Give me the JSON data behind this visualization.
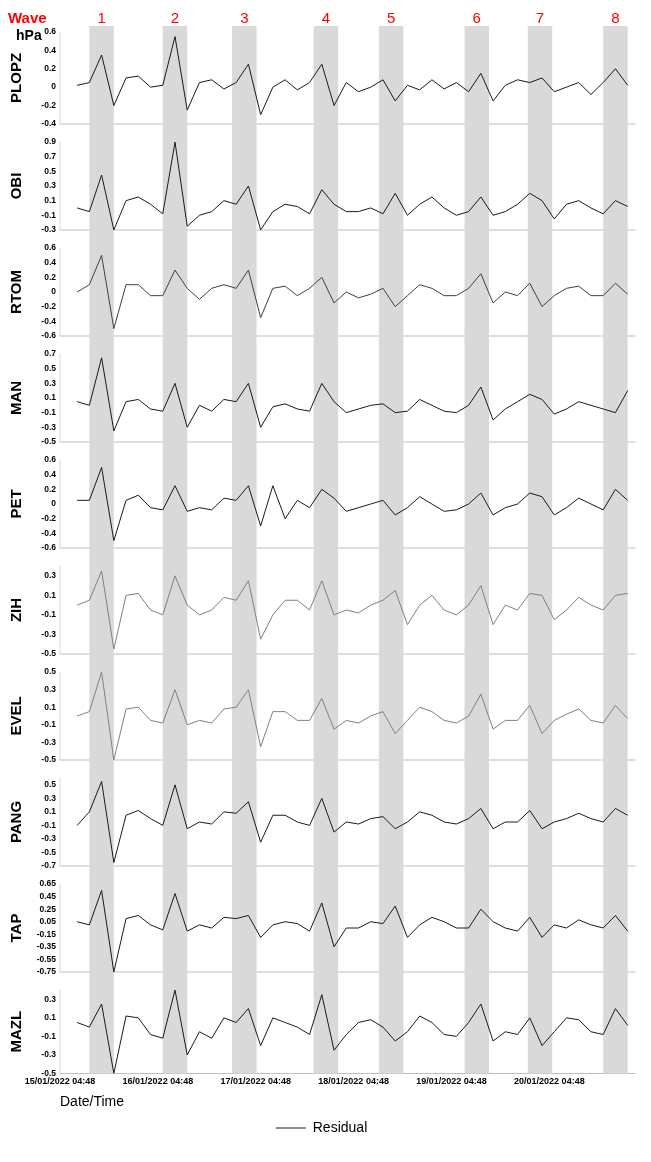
{
  "chart_data": [
    {
      "type": "line",
      "title": "Wave",
      "annotations": [
        "hPa"
      ],
      "ylabel": "PLOPZ",
      "marker": "none",
      "tick_labels": "y",
      "x": [
        "2022-01-15T09:00",
        "2022-01-15T12:00",
        "2022-01-15T15:00",
        "2022-01-15T18:00",
        "2022-01-15T21:00",
        "2022-01-16T00:00",
        "2022-01-16T03:00",
        "2022-01-16T06:00",
        "2022-01-16T09:00",
        "2022-01-16T12:00",
        "2022-01-16T15:00",
        "2022-01-16T18:00",
        "2022-01-16T21:00",
        "2022-01-17T00:00",
        "2022-01-17T03:00",
        "2022-01-17T06:00",
        "2022-01-17T09:00",
        "2022-01-17T12:00",
        "2022-01-17T15:00",
        "2022-01-17T18:00",
        "2022-01-17T21:00",
        "2022-01-18T00:00",
        "2022-01-18T03:00",
        "2022-01-18T06:00",
        "2022-01-18T09:00",
        "2022-01-18T12:00",
        "2022-01-18T15:00",
        "2022-01-18T18:00",
        "2022-01-18T21:00",
        "2022-01-19T00:00",
        "2022-01-19T03:00",
        "2022-01-19T06:00",
        "2022-01-19T09:00",
        "2022-01-19T12:00",
        "2022-01-19T15:00",
        "2022-01-19T18:00",
        "2022-01-19T21:00",
        "2022-01-20T00:00",
        "2022-01-20T03:00",
        "2022-01-20T06:00",
        "2022-01-20T09:00",
        "2022-01-20T12:00",
        "2022-01-20T15:00",
        "2022-01-20T18:00",
        "2022-01-20T21:00",
        "2022-01-21T00:00"
      ],
      "series": [
        {
          "color": "#1a1a1a",
          "values": [
            0.02,
            0.05,
            0.35,
            -0.2,
            0.1,
            0.12,
            0.0,
            0.02,
            0.55,
            -0.25,
            0.05,
            0.08,
            -0.02,
            0.05,
            0.25,
            -0.3,
            0.0,
            0.08,
            -0.03,
            0.05,
            0.25,
            -0.2,
            0.05,
            -0.05,
            0.0,
            0.08,
            -0.15,
            0.02,
            -0.03,
            0.08,
            -0.02,
            0.05,
            -0.05,
            0.15,
            -0.15,
            0.02,
            0.08,
            0.05,
            0.1,
            -0.05,
            0.0,
            0.05,
            -0.08,
            0.05,
            0.2,
            0.02
          ]
        }
      ],
      "xlim": [
        "2022-01-15T04:48",
        "2022-01-21T01:48"
      ],
      "ylim": [
        -0.4,
        0.6
      ],
      "yticks": [
        -0.4,
        -0.2,
        0,
        0.2,
        0.4,
        0.6
      ],
      "bands": [
        {
          "axis": "x",
          "from": "2022-01-15T12:00",
          "to": "2022-01-15T18:00",
          "label": "1",
          "color": "#d9d9d9"
        },
        {
          "axis": "x",
          "from": "2022-01-16T06:00",
          "to": "2022-01-16T12:00",
          "label": "2",
          "color": "#d9d9d9"
        },
        {
          "axis": "x",
          "from": "2022-01-16T23:00",
          "to": "2022-01-17T05:00",
          "label": "3",
          "color": "#d9d9d9"
        },
        {
          "axis": "x",
          "from": "2022-01-17T19:00",
          "to": "2022-01-18T01:00",
          "label": "4",
          "color": "#d9d9d9"
        },
        {
          "axis": "x",
          "from": "2022-01-18T11:00",
          "to": "2022-01-18T17:00",
          "label": "5",
          "color": "#d9d9d9"
        },
        {
          "axis": "x",
          "from": "2022-01-19T08:00",
          "to": "2022-01-19T14:00",
          "label": "6",
          "color": "#d9d9d9"
        },
        {
          "axis": "x",
          "from": "2022-01-19T23:30",
          "to": "2022-01-20T05:30",
          "label": "7",
          "color": "#d9d9d9"
        },
        {
          "axis": "x",
          "from": "2022-01-20T18:00",
          "to": "2022-01-21T00:00",
          "label": "8",
          "color": "#d9d9d9"
        }
      ]
    },
    {
      "type": "line",
      "ylabel": "OBI",
      "marker": "none",
      "tick_labels": "y",
      "x": [
        "2022-01-15T09:00",
        "2022-01-15T12:00",
        "2022-01-15T15:00",
        "2022-01-15T18:00",
        "2022-01-15T21:00",
        "2022-01-16T00:00",
        "2022-01-16T03:00",
        "2022-01-16T06:00",
        "2022-01-16T09:00",
        "2022-01-16T12:00",
        "2022-01-16T15:00",
        "2022-01-16T18:00",
        "2022-01-16T21:00",
        "2022-01-17T00:00",
        "2022-01-17T03:00",
        "2022-01-17T06:00",
        "2022-01-17T09:00",
        "2022-01-17T12:00",
        "2022-01-17T15:00",
        "2022-01-17T18:00",
        "2022-01-17T21:00",
        "2022-01-18T00:00",
        "2022-01-18T03:00",
        "2022-01-18T06:00",
        "2022-01-18T09:00",
        "2022-01-18T12:00",
        "2022-01-18T15:00",
        "2022-01-18T18:00",
        "2022-01-18T21:00",
        "2022-01-19T00:00",
        "2022-01-19T03:00",
        "2022-01-19T06:00",
        "2022-01-19T09:00",
        "2022-01-19T12:00",
        "2022-01-19T15:00",
        "2022-01-19T18:00",
        "2022-01-19T21:00",
        "2022-01-20T00:00",
        "2022-01-20T03:00",
        "2022-01-20T06:00",
        "2022-01-20T09:00",
        "2022-01-20T12:00",
        "2022-01-20T15:00",
        "2022-01-20T18:00",
        "2022-01-20T21:00",
        "2022-01-21T00:00"
      ],
      "series": [
        {
          "color": "#1a1a1a",
          "values": [
            0.0,
            -0.05,
            0.45,
            -0.3,
            0.1,
            0.15,
            0.05,
            -0.08,
            0.9,
            -0.25,
            -0.1,
            -0.05,
            0.1,
            0.05,
            0.3,
            -0.3,
            -0.05,
            0.05,
            0.02,
            -0.08,
            0.25,
            0.05,
            -0.05,
            -0.05,
            0.0,
            -0.08,
            0.2,
            -0.1,
            0.05,
            0.15,
            0.0,
            -0.1,
            -0.05,
            0.15,
            -0.1,
            -0.05,
            0.05,
            0.2,
            0.1,
            -0.15,
            0.05,
            0.1,
            0.0,
            -0.08,
            0.1,
            0.02
          ]
        }
      ],
      "xlim": [
        "2022-01-15T04:48",
        "2022-01-21T01:48"
      ],
      "ylim": [
        -0.3,
        0.9
      ],
      "yticks": [
        -0.3,
        -0.1,
        0.1,
        0.3,
        0.5,
        0.7,
        0.9
      ],
      "bands": [
        {
          "axis": "x",
          "from": "2022-01-15T12:00",
          "to": "2022-01-15T18:00",
          "color": "#d9d9d9"
        },
        {
          "axis": "x",
          "from": "2022-01-16T06:00",
          "to": "2022-01-16T12:00",
          "color": "#d9d9d9"
        },
        {
          "axis": "x",
          "from": "2022-01-16T23:00",
          "to": "2022-01-17T05:00",
          "color": "#d9d9d9"
        },
        {
          "axis": "x",
          "from": "2022-01-17T19:00",
          "to": "2022-01-18T01:00",
          "color": "#d9d9d9"
        },
        {
          "axis": "x",
          "from": "2022-01-18T11:00",
          "to": "2022-01-18T17:00",
          "color": "#d9d9d9"
        },
        {
          "axis": "x",
          "from": "2022-01-19T08:00",
          "to": "2022-01-19T14:00",
          "color": "#d9d9d9"
        },
        {
          "axis": "x",
          "from": "2022-01-19T23:30",
          "to": "2022-01-20T05:30",
          "color": "#d9d9d9"
        },
        {
          "axis": "x",
          "from": "2022-01-20T18:00",
          "to": "2022-01-21T00:00",
          "color": "#d9d9d9"
        }
      ]
    },
    {
      "type": "line",
      "ylabel": "RTOM",
      "marker": "none",
      "tick_labels": "y",
      "x": [
        "2022-01-15T09:00",
        "2022-01-15T12:00",
        "2022-01-15T15:00",
        "2022-01-15T18:00",
        "2022-01-15T21:00",
        "2022-01-16T00:00",
        "2022-01-16T03:00",
        "2022-01-16T06:00",
        "2022-01-16T09:00",
        "2022-01-16T12:00",
        "2022-01-16T15:00",
        "2022-01-16T18:00",
        "2022-01-16T21:00",
        "2022-01-17T00:00",
        "2022-01-17T03:00",
        "2022-01-17T06:00",
        "2022-01-17T09:00",
        "2022-01-17T12:00",
        "2022-01-17T15:00",
        "2022-01-17T18:00",
        "2022-01-17T21:00",
        "2022-01-18T00:00",
        "2022-01-18T03:00",
        "2022-01-18T06:00",
        "2022-01-18T09:00",
        "2022-01-18T12:00",
        "2022-01-18T15:00",
        "2022-01-18T18:00",
        "2022-01-18T21:00",
        "2022-01-19T00:00",
        "2022-01-19T03:00",
        "2022-01-19T06:00",
        "2022-01-19T09:00",
        "2022-01-19T12:00",
        "2022-01-19T15:00",
        "2022-01-19T18:00",
        "2022-01-19T21:00",
        "2022-01-20T00:00",
        "2022-01-20T03:00",
        "2022-01-20T06:00",
        "2022-01-20T09:00",
        "2022-01-20T12:00",
        "2022-01-20T15:00",
        "2022-01-20T18:00",
        "2022-01-20T21:00",
        "2022-01-21T00:00"
      ],
      "series": [
        {
          "color": "#404040",
          "values": [
            0.0,
            0.1,
            0.5,
            -0.5,
            0.1,
            0.1,
            -0.05,
            -0.05,
            0.3,
            0.05,
            -0.1,
            0.05,
            0.1,
            0.05,
            0.3,
            -0.35,
            0.05,
            0.08,
            -0.05,
            0.05,
            0.2,
            -0.15,
            0.0,
            -0.08,
            -0.03,
            0.05,
            -0.2,
            -0.05,
            0.1,
            0.05,
            -0.05,
            -0.05,
            0.05,
            0.25,
            -0.15,
            0.0,
            -0.05,
            0.12,
            -0.2,
            -0.05,
            0.05,
            0.08,
            -0.05,
            -0.05,
            0.12,
            -0.03
          ]
        }
      ],
      "xlim": [
        "2022-01-15T04:48",
        "2022-01-21T01:48"
      ],
      "ylim": [
        -0.6,
        0.6
      ],
      "yticks": [
        -0.6,
        -0.4,
        -0.2,
        0,
        0.2,
        0.4,
        0.6
      ],
      "bands": [
        {
          "axis": "x",
          "from": "2022-01-15T12:00",
          "to": "2022-01-15T18:00",
          "color": "#d9d9d9"
        },
        {
          "axis": "x",
          "from": "2022-01-16T06:00",
          "to": "2022-01-16T12:00",
          "color": "#d9d9d9"
        },
        {
          "axis": "x",
          "from": "2022-01-16T23:00",
          "to": "2022-01-17T05:00",
          "color": "#d9d9d9"
        },
        {
          "axis": "x",
          "from": "2022-01-17T19:00",
          "to": "2022-01-18T01:00",
          "color": "#d9d9d9"
        },
        {
          "axis": "x",
          "from": "2022-01-18T11:00",
          "to": "2022-01-18T17:00",
          "color": "#d9d9d9"
        },
        {
          "axis": "x",
          "from": "2022-01-19T08:00",
          "to": "2022-01-19T14:00",
          "color": "#d9d9d9"
        },
        {
          "axis": "x",
          "from": "2022-01-19T23:30",
          "to": "2022-01-20T05:30",
          "color": "#d9d9d9"
        },
        {
          "axis": "x",
          "from": "2022-01-20T18:00",
          "to": "2022-01-21T00:00",
          "color": "#d9d9d9"
        }
      ]
    },
    {
      "type": "line",
      "ylabel": "MAN",
      "marker": "none",
      "tick_labels": "y",
      "x": [
        "2022-01-15T09:00",
        "2022-01-15T12:00",
        "2022-01-15T15:00",
        "2022-01-15T18:00",
        "2022-01-15T21:00",
        "2022-01-16T00:00",
        "2022-01-16T03:00",
        "2022-01-16T06:00",
        "2022-01-16T09:00",
        "2022-01-16T12:00",
        "2022-01-16T15:00",
        "2022-01-16T18:00",
        "2022-01-16T21:00",
        "2022-01-17T00:00",
        "2022-01-17T03:00",
        "2022-01-17T06:00",
        "2022-01-17T09:00",
        "2022-01-17T12:00",
        "2022-01-17T15:00",
        "2022-01-17T18:00",
        "2022-01-17T21:00",
        "2022-01-18T00:00",
        "2022-01-18T03:00",
        "2022-01-18T06:00",
        "2022-01-18T09:00",
        "2022-01-18T12:00",
        "2022-01-18T15:00",
        "2022-01-18T18:00",
        "2022-01-18T21:00",
        "2022-01-19T00:00",
        "2022-01-19T03:00",
        "2022-01-19T06:00",
        "2022-01-19T09:00",
        "2022-01-19T12:00",
        "2022-01-19T15:00",
        "2022-01-19T18:00",
        "2022-01-19T21:00",
        "2022-01-20T00:00",
        "2022-01-20T03:00",
        "2022-01-20T06:00",
        "2022-01-20T09:00",
        "2022-01-20T12:00",
        "2022-01-20T15:00",
        "2022-01-20T18:00",
        "2022-01-20T21:00",
        "2022-01-21T00:00"
      ],
      "series": [
        {
          "color": "#1a1a1a",
          "values": [
            0.05,
            0.0,
            0.65,
            -0.35,
            0.05,
            0.08,
            -0.05,
            -0.08,
            0.3,
            -0.3,
            0.0,
            -0.08,
            0.08,
            0.05,
            0.3,
            -0.3,
            -0.02,
            0.02,
            -0.05,
            -0.08,
            0.3,
            0.05,
            -0.1,
            -0.05,
            0.0,
            0.02,
            -0.1,
            -0.08,
            0.08,
            0.0,
            -0.08,
            -0.1,
            0.0,
            0.25,
            -0.2,
            -0.05,
            0.05,
            0.15,
            0.08,
            -0.12,
            -0.05,
            0.05,
            0.0,
            -0.05,
            -0.1,
            0.2
          ]
        }
      ],
      "xlim": [
        "2022-01-15T04:48",
        "2022-01-21T01:48"
      ],
      "ylim": [
        -0.5,
        0.7
      ],
      "yticks": [
        -0.5,
        -0.3,
        -0.1,
        0.1,
        0.3,
        0.5,
        0.7
      ],
      "bands": [
        {
          "axis": "x",
          "from": "2022-01-15T12:00",
          "to": "2022-01-15T18:00",
          "color": "#d9d9d9"
        },
        {
          "axis": "x",
          "from": "2022-01-16T06:00",
          "to": "2022-01-16T12:00",
          "color": "#d9d9d9"
        },
        {
          "axis": "x",
          "from": "2022-01-16T23:00",
          "to": "2022-01-17T05:00",
          "color": "#d9d9d9"
        },
        {
          "axis": "x",
          "from": "2022-01-17T19:00",
          "to": "2022-01-18T01:00",
          "color": "#d9d9d9"
        },
        {
          "axis": "x",
          "from": "2022-01-18T11:00",
          "to": "2022-01-18T17:00",
          "color": "#d9d9d9"
        },
        {
          "axis": "x",
          "from": "2022-01-19T08:00",
          "to": "2022-01-19T14:00",
          "color": "#d9d9d9"
        },
        {
          "axis": "x",
          "from": "2022-01-19T23:30",
          "to": "2022-01-20T05:30",
          "color": "#d9d9d9"
        },
        {
          "axis": "x",
          "from": "2022-01-20T18:00",
          "to": "2022-01-21T00:00",
          "color": "#d9d9d9"
        }
      ]
    },
    {
      "type": "line",
      "ylabel": "PET",
      "marker": "none",
      "tick_labels": "y",
      "x": [
        "2022-01-15T09:00",
        "2022-01-15T12:00",
        "2022-01-15T15:00",
        "2022-01-15T18:00",
        "2022-01-15T21:00",
        "2022-01-16T00:00",
        "2022-01-16T03:00",
        "2022-01-16T06:00",
        "2022-01-16T09:00",
        "2022-01-16T12:00",
        "2022-01-16T15:00",
        "2022-01-16T18:00",
        "2022-01-16T21:00",
        "2022-01-17T00:00",
        "2022-01-17T03:00",
        "2022-01-17T06:00",
        "2022-01-17T09:00",
        "2022-01-17T12:00",
        "2022-01-17T15:00",
        "2022-01-17T18:00",
        "2022-01-17T21:00",
        "2022-01-18T00:00",
        "2022-01-18T03:00",
        "2022-01-18T06:00",
        "2022-01-18T09:00",
        "2022-01-18T12:00",
        "2022-01-18T15:00",
        "2022-01-18T18:00",
        "2022-01-18T21:00",
        "2022-01-19T00:00",
        "2022-01-19T03:00",
        "2022-01-19T06:00",
        "2022-01-19T09:00",
        "2022-01-19T12:00",
        "2022-01-19T15:00",
        "2022-01-19T18:00",
        "2022-01-19T21:00",
        "2022-01-20T00:00",
        "2022-01-20T03:00",
        "2022-01-20T06:00",
        "2022-01-20T09:00",
        "2022-01-20T12:00",
        "2022-01-20T15:00",
        "2022-01-20T18:00",
        "2022-01-20T21:00",
        "2022-01-21T00:00"
      ],
      "series": [
        {
          "color": "#1a1a1a",
          "values": [
            0.05,
            0.05,
            0.5,
            -0.5,
            0.05,
            0.12,
            -0.05,
            -0.08,
            0.25,
            -0.1,
            -0.05,
            -0.08,
            0.08,
            0.05,
            0.25,
            -0.3,
            0.25,
            -0.2,
            0.05,
            -0.05,
            0.2,
            0.08,
            -0.1,
            -0.05,
            0.0,
            0.05,
            -0.15,
            -0.05,
            0.1,
            0.0,
            -0.1,
            -0.08,
            0.0,
            0.15,
            -0.15,
            -0.05,
            0.0,
            0.15,
            0.1,
            -0.15,
            -0.05,
            0.08,
            0.0,
            -0.08,
            0.2,
            0.05
          ]
        }
      ],
      "xlim": [
        "2022-01-15T04:48",
        "2022-01-21T01:48"
      ],
      "ylim": [
        -0.6,
        0.6
      ],
      "yticks": [
        -0.6,
        -0.4,
        -0.2,
        0,
        0.2,
        0.4,
        0.6
      ],
      "bands": [
        {
          "axis": "x",
          "from": "2022-01-15T12:00",
          "to": "2022-01-15T18:00",
          "color": "#d9d9d9"
        },
        {
          "axis": "x",
          "from": "2022-01-16T06:00",
          "to": "2022-01-16T12:00",
          "color": "#d9d9d9"
        },
        {
          "axis": "x",
          "from": "2022-01-16T23:00",
          "to": "2022-01-17T05:00",
          "color": "#d9d9d9"
        },
        {
          "axis": "x",
          "from": "2022-01-17T19:00",
          "to": "2022-01-18T01:00",
          "color": "#d9d9d9"
        },
        {
          "axis": "x",
          "from": "2022-01-18T11:00",
          "to": "2022-01-18T17:00",
          "color": "#d9d9d9"
        },
        {
          "axis": "x",
          "from": "2022-01-19T08:00",
          "to": "2022-01-19T14:00",
          "color": "#d9d9d9"
        },
        {
          "axis": "x",
          "from": "2022-01-19T23:30",
          "to": "2022-01-20T05:30",
          "color": "#d9d9d9"
        },
        {
          "axis": "x",
          "from": "2022-01-20T18:00",
          "to": "2022-01-21T00:00",
          "color": "#d9d9d9"
        }
      ]
    },
    {
      "type": "line",
      "ylabel": "ZIH",
      "marker": "none",
      "tick_labels": "y",
      "x": [
        "2022-01-15T09:00",
        "2022-01-15T12:00",
        "2022-01-15T15:00",
        "2022-01-15T18:00",
        "2022-01-15T21:00",
        "2022-01-16T00:00",
        "2022-01-16T03:00",
        "2022-01-16T06:00",
        "2022-01-16T09:00",
        "2022-01-16T12:00",
        "2022-01-16T15:00",
        "2022-01-16T18:00",
        "2022-01-16T21:00",
        "2022-01-17T00:00",
        "2022-01-17T03:00",
        "2022-01-17T06:00",
        "2022-01-17T09:00",
        "2022-01-17T12:00",
        "2022-01-17T15:00",
        "2022-01-17T18:00",
        "2022-01-17T21:00",
        "2022-01-18T00:00",
        "2022-01-18T03:00",
        "2022-01-18T06:00",
        "2022-01-18T09:00",
        "2022-01-18T12:00",
        "2022-01-18T15:00",
        "2022-01-18T18:00",
        "2022-01-18T21:00",
        "2022-01-19T00:00",
        "2022-01-19T03:00",
        "2022-01-19T06:00",
        "2022-01-19T09:00",
        "2022-01-19T12:00",
        "2022-01-19T15:00",
        "2022-01-19T18:00",
        "2022-01-19T21:00",
        "2022-01-20T00:00",
        "2022-01-20T03:00",
        "2022-01-20T06:00",
        "2022-01-20T09:00",
        "2022-01-20T12:00",
        "2022-01-20T15:00",
        "2022-01-20T18:00",
        "2022-01-20T21:00",
        "2022-01-21T00:00"
      ],
      "series": [
        {
          "color": "#808080",
          "values": [
            0.0,
            0.05,
            0.35,
            -0.45,
            0.1,
            0.12,
            -0.05,
            -0.1,
            0.3,
            0.0,
            -0.1,
            -0.05,
            0.08,
            0.05,
            0.25,
            -0.35,
            -0.1,
            0.05,
            0.05,
            -0.05,
            0.25,
            -0.1,
            -0.05,
            -0.08,
            0.0,
            0.05,
            0.15,
            -0.2,
            0.0,
            0.1,
            -0.05,
            -0.1,
            0.0,
            0.2,
            -0.2,
            0.0,
            -0.05,
            0.12,
            0.1,
            -0.15,
            -0.05,
            0.08,
            0.0,
            -0.05,
            0.1,
            0.12
          ]
        }
      ],
      "xlim": [
        "2022-01-15T04:48",
        "2022-01-21T01:48"
      ],
      "ylim": [
        -0.5,
        0.4
      ],
      "yticks": [
        -0.5,
        -0.3,
        -0.1,
        0.1,
        0.3
      ],
      "bands": [
        {
          "axis": "x",
          "from": "2022-01-15T12:00",
          "to": "2022-01-15T18:00",
          "color": "#d9d9d9"
        },
        {
          "axis": "x",
          "from": "2022-01-16T06:00",
          "to": "2022-01-16T12:00",
          "color": "#d9d9d9"
        },
        {
          "axis": "x",
          "from": "2022-01-16T23:00",
          "to": "2022-01-17T05:00",
          "color": "#d9d9d9"
        },
        {
          "axis": "x",
          "from": "2022-01-17T19:00",
          "to": "2022-01-18T01:00",
          "color": "#d9d9d9"
        },
        {
          "axis": "x",
          "from": "2022-01-18T11:00",
          "to": "2022-01-18T17:00",
          "color": "#d9d9d9"
        },
        {
          "axis": "x",
          "from": "2022-01-19T08:00",
          "to": "2022-01-19T14:00",
          "color": "#d9d9d9"
        },
        {
          "axis": "x",
          "from": "2022-01-19T23:30",
          "to": "2022-01-20T05:30",
          "color": "#d9d9d9"
        },
        {
          "axis": "x",
          "from": "2022-01-20T18:00",
          "to": "2022-01-21T00:00",
          "color": "#d9d9d9"
        }
      ]
    },
    {
      "type": "line",
      "ylabel": "EVEL",
      "marker": "none",
      "tick_labels": "y",
      "x": [
        "2022-01-15T09:00",
        "2022-01-15T12:00",
        "2022-01-15T15:00",
        "2022-01-15T18:00",
        "2022-01-15T21:00",
        "2022-01-16T00:00",
        "2022-01-16T03:00",
        "2022-01-16T06:00",
        "2022-01-16T09:00",
        "2022-01-16T12:00",
        "2022-01-16T15:00",
        "2022-01-16T18:00",
        "2022-01-16T21:00",
        "2022-01-17T00:00",
        "2022-01-17T03:00",
        "2022-01-17T06:00",
        "2022-01-17T09:00",
        "2022-01-17T12:00",
        "2022-01-17T15:00",
        "2022-01-17T18:00",
        "2022-01-17T21:00",
        "2022-01-18T00:00",
        "2022-01-18T03:00",
        "2022-01-18T06:00",
        "2022-01-18T09:00",
        "2022-01-18T12:00",
        "2022-01-18T15:00",
        "2022-01-18T18:00",
        "2022-01-18T21:00",
        "2022-01-19T00:00",
        "2022-01-19T03:00",
        "2022-01-19T06:00",
        "2022-01-19T09:00",
        "2022-01-19T12:00",
        "2022-01-19T15:00",
        "2022-01-19T18:00",
        "2022-01-19T21:00",
        "2022-01-20T00:00",
        "2022-01-20T03:00",
        "2022-01-20T06:00",
        "2022-01-20T09:00",
        "2022-01-20T12:00",
        "2022-01-20T15:00",
        "2022-01-20T18:00",
        "2022-01-20T21:00",
        "2022-01-21T00:00"
      ],
      "series": [
        {
          "color": "#808080",
          "values": [
            0.0,
            0.05,
            0.5,
            -0.5,
            0.08,
            0.1,
            -0.05,
            -0.08,
            0.3,
            -0.1,
            -0.05,
            -0.08,
            0.08,
            0.1,
            0.3,
            -0.35,
            0.05,
            0.05,
            -0.05,
            -0.05,
            0.2,
            -0.15,
            -0.05,
            -0.08,
            0.0,
            0.05,
            -0.2,
            -0.05,
            0.1,
            0.05,
            -0.05,
            -0.08,
            0.0,
            0.25,
            -0.15,
            -0.05,
            -0.05,
            0.12,
            -0.2,
            -0.05,
            0.02,
            0.08,
            -0.05,
            -0.08,
            0.12,
            -0.03
          ]
        }
      ],
      "xlim": [
        "2022-01-15T04:48",
        "2022-01-21T01:48"
      ],
      "ylim": [
        -0.5,
        0.5
      ],
      "yticks": [
        -0.5,
        -0.3,
        -0.1,
        0.1,
        0.3,
        0.5
      ],
      "bands": [
        {
          "axis": "x",
          "from": "2022-01-15T12:00",
          "to": "2022-01-15T18:00",
          "color": "#d9d9d9"
        },
        {
          "axis": "x",
          "from": "2022-01-16T06:00",
          "to": "2022-01-16T12:00",
          "color": "#d9d9d9"
        },
        {
          "axis": "x",
          "from": "2022-01-16T23:00",
          "to": "2022-01-17T05:00",
          "color": "#d9d9d9"
        },
        {
          "axis": "x",
          "from": "2022-01-17T19:00",
          "to": "2022-01-18T01:00",
          "color": "#d9d9d9"
        },
        {
          "axis": "x",
          "from": "2022-01-18T11:00",
          "to": "2022-01-18T17:00",
          "color": "#d9d9d9"
        },
        {
          "axis": "x",
          "from": "2022-01-19T08:00",
          "to": "2022-01-19T14:00",
          "color": "#d9d9d9"
        },
        {
          "axis": "x",
          "from": "2022-01-19T23:30",
          "to": "2022-01-20T05:30",
          "color": "#d9d9d9"
        },
        {
          "axis": "x",
          "from": "2022-01-20T18:00",
          "to": "2022-01-21T00:00",
          "color": "#d9d9d9"
        }
      ]
    },
    {
      "type": "line",
      "ylabel": "PANG",
      "marker": "none",
      "tick_labels": "y",
      "x": [
        "2022-01-15T09:00",
        "2022-01-15T12:00",
        "2022-01-15T15:00",
        "2022-01-15T18:00",
        "2022-01-15T21:00",
        "2022-01-16T00:00",
        "2022-01-16T03:00",
        "2022-01-16T06:00",
        "2022-01-16T09:00",
        "2022-01-16T12:00",
        "2022-01-16T15:00",
        "2022-01-16T18:00",
        "2022-01-16T21:00",
        "2022-01-17T00:00",
        "2022-01-17T03:00",
        "2022-01-17T06:00",
        "2022-01-17T09:00",
        "2022-01-17T12:00",
        "2022-01-17T15:00",
        "2022-01-17T18:00",
        "2022-01-17T21:00",
        "2022-01-18T00:00",
        "2022-01-18T03:00",
        "2022-01-18T06:00",
        "2022-01-18T09:00",
        "2022-01-18T12:00",
        "2022-01-18T15:00",
        "2022-01-18T18:00",
        "2022-01-18T21:00",
        "2022-01-19T00:00",
        "2022-01-19T03:00",
        "2022-01-19T06:00",
        "2022-01-19T09:00",
        "2022-01-19T12:00",
        "2022-01-19T15:00",
        "2022-01-19T18:00",
        "2022-01-19T21:00",
        "2022-01-20T00:00",
        "2022-01-20T03:00",
        "2022-01-20T06:00",
        "2022-01-20T09:00",
        "2022-01-20T12:00",
        "2022-01-20T15:00",
        "2022-01-20T18:00",
        "2022-01-20T21:00",
        "2022-01-21T00:00"
      ],
      "series": [
        {
          "color": "#1a1a1a",
          "values": [
            -0.1,
            0.1,
            0.55,
            -0.65,
            0.05,
            0.12,
            0.0,
            -0.1,
            0.5,
            -0.15,
            -0.05,
            -0.08,
            0.1,
            0.08,
            0.25,
            -0.35,
            0.05,
            0.05,
            -0.05,
            -0.1,
            0.3,
            -0.2,
            -0.05,
            -0.08,
            0.0,
            0.03,
            -0.15,
            -0.05,
            0.1,
            0.05,
            -0.05,
            -0.08,
            0.0,
            0.15,
            -0.15,
            -0.05,
            -0.05,
            0.12,
            -0.15,
            -0.05,
            0.0,
            0.08,
            0.0,
            -0.05,
            0.15,
            0.05
          ]
        }
      ],
      "xlim": [
        "2022-01-15T04:48",
        "2022-01-21T01:48"
      ],
      "ylim": [
        -0.7,
        0.6
      ],
      "yticks": [
        -0.7,
        -0.5,
        -0.3,
        -0.1,
        0.1,
        0.3,
        0.5
      ],
      "bands": [
        {
          "axis": "x",
          "from": "2022-01-15T12:00",
          "to": "2022-01-15T18:00",
          "color": "#d9d9d9"
        },
        {
          "axis": "x",
          "from": "2022-01-16T06:00",
          "to": "2022-01-16T12:00",
          "color": "#d9d9d9"
        },
        {
          "axis": "x",
          "from": "2022-01-16T23:00",
          "to": "2022-01-17T05:00",
          "color": "#d9d9d9"
        },
        {
          "axis": "x",
          "from": "2022-01-17T19:00",
          "to": "2022-01-18T01:00",
          "color": "#d9d9d9"
        },
        {
          "axis": "x",
          "from": "2022-01-18T11:00",
          "to": "2022-01-18T17:00",
          "color": "#d9d9d9"
        },
        {
          "axis": "x",
          "from": "2022-01-19T08:00",
          "to": "2022-01-19T14:00",
          "color": "#d9d9d9"
        },
        {
          "axis": "x",
          "from": "2022-01-19T23:30",
          "to": "2022-01-20T05:30",
          "color": "#d9d9d9"
        },
        {
          "axis": "x",
          "from": "2022-01-20T18:00",
          "to": "2022-01-21T00:00",
          "color": "#d9d9d9"
        }
      ]
    },
    {
      "type": "line",
      "ylabel": "TAP",
      "marker": "none",
      "tick_labels": "y",
      "x": [
        "2022-01-15T09:00",
        "2022-01-15T12:00",
        "2022-01-15T15:00",
        "2022-01-15T18:00",
        "2022-01-15T21:00",
        "2022-01-16T00:00",
        "2022-01-16T03:00",
        "2022-01-16T06:00",
        "2022-01-16T09:00",
        "2022-01-16T12:00",
        "2022-01-16T15:00",
        "2022-01-16T18:00",
        "2022-01-16T21:00",
        "2022-01-17T00:00",
        "2022-01-17T03:00",
        "2022-01-17T06:00",
        "2022-01-17T09:00",
        "2022-01-17T12:00",
        "2022-01-17T15:00",
        "2022-01-17T18:00",
        "2022-01-17T21:00",
        "2022-01-18T00:00",
        "2022-01-18T03:00",
        "2022-01-18T06:00",
        "2022-01-18T09:00",
        "2022-01-18T12:00",
        "2022-01-18T15:00",
        "2022-01-18T18:00",
        "2022-01-18T21:00",
        "2022-01-19T00:00",
        "2022-01-19T03:00",
        "2022-01-19T06:00",
        "2022-01-19T09:00",
        "2022-01-19T12:00",
        "2022-01-19T15:00",
        "2022-01-19T18:00",
        "2022-01-19T21:00",
        "2022-01-20T00:00",
        "2022-01-20T03:00",
        "2022-01-20T06:00",
        "2022-01-20T09:00",
        "2022-01-20T12:00",
        "2022-01-20T15:00",
        "2022-01-20T18:00",
        "2022-01-20T21:00",
        "2022-01-21T00:00"
      ],
      "series": [
        {
          "color": "#1a1a1a",
          "values": [
            0.05,
            0.0,
            0.55,
            -0.75,
            0.1,
            0.15,
            0.0,
            -0.08,
            0.5,
            -0.1,
            0.0,
            -0.05,
            0.12,
            0.1,
            0.15,
            -0.2,
            0.0,
            0.05,
            0.02,
            -0.1,
            0.35,
            -0.35,
            -0.05,
            -0.05,
            0.05,
            0.02,
            0.3,
            -0.2,
            0.0,
            0.12,
            0.05,
            -0.05,
            -0.05,
            0.25,
            0.05,
            -0.05,
            -0.1,
            0.12,
            -0.2,
            0.0,
            -0.05,
            0.08,
            0.0,
            -0.05,
            0.15,
            -0.1
          ]
        }
      ],
      "xlim": [
        "2022-01-15T04:48",
        "2022-01-21T01:48"
      ],
      "ylim": [
        -0.75,
        0.65
      ],
      "yticks": [
        -0.75,
        -0.55,
        -0.35,
        -0.15,
        0.05,
        0.25,
        0.45,
        0.65
      ],
      "bands": [
        {
          "axis": "x",
          "from": "2022-01-15T12:00",
          "to": "2022-01-15T18:00",
          "color": "#d9d9d9"
        },
        {
          "axis": "x",
          "from": "2022-01-16T06:00",
          "to": "2022-01-16T12:00",
          "color": "#d9d9d9"
        },
        {
          "axis": "x",
          "from": "2022-01-16T23:00",
          "to": "2022-01-17T05:00",
          "color": "#d9d9d9"
        },
        {
          "axis": "x",
          "from": "2022-01-17T19:00",
          "to": "2022-01-18T01:00",
          "color": "#d9d9d9"
        },
        {
          "axis": "x",
          "from": "2022-01-18T11:00",
          "to": "2022-01-18T17:00",
          "color": "#d9d9d9"
        },
        {
          "axis": "x",
          "from": "2022-01-19T08:00",
          "to": "2022-01-19T14:00",
          "color": "#d9d9d9"
        },
        {
          "axis": "x",
          "from": "2022-01-19T23:30",
          "to": "2022-01-20T05:30",
          "color": "#d9d9d9"
        },
        {
          "axis": "x",
          "from": "2022-01-20T18:00",
          "to": "2022-01-21T00:00",
          "color": "#d9d9d9"
        }
      ]
    },
    {
      "type": "line",
      "ylabel": "MAZL",
      "xlabel": "Date/Time",
      "legend": "bottom",
      "marker": "none",
      "x": [
        "2022-01-15T09:00",
        "2022-01-15T12:00",
        "2022-01-15T15:00",
        "2022-01-15T18:00",
        "2022-01-15T21:00",
        "2022-01-16T00:00",
        "2022-01-16T03:00",
        "2022-01-16T06:00",
        "2022-01-16T09:00",
        "2022-01-16T12:00",
        "2022-01-16T15:00",
        "2022-01-16T18:00",
        "2022-01-16T21:00",
        "2022-01-17T00:00",
        "2022-01-17T03:00",
        "2022-01-17T06:00",
        "2022-01-17T09:00",
        "2022-01-17T12:00",
        "2022-01-17T15:00",
        "2022-01-17T18:00",
        "2022-01-17T21:00",
        "2022-01-18T00:00",
        "2022-01-18T03:00",
        "2022-01-18T06:00",
        "2022-01-18T09:00",
        "2022-01-18T12:00",
        "2022-01-18T15:00",
        "2022-01-18T18:00",
        "2022-01-18T21:00",
        "2022-01-19T00:00",
        "2022-01-19T03:00",
        "2022-01-19T06:00",
        "2022-01-19T09:00",
        "2022-01-19T12:00",
        "2022-01-19T15:00",
        "2022-01-19T18:00",
        "2022-01-19T21:00",
        "2022-01-20T00:00",
        "2022-01-20T03:00",
        "2022-01-20T06:00",
        "2022-01-20T09:00",
        "2022-01-20T12:00",
        "2022-01-20T15:00",
        "2022-01-20T18:00",
        "2022-01-20T21:00",
        "2022-01-21T00:00"
      ],
      "series": [
        {
          "name": "Residual",
          "color": "#1a1a1a",
          "values": [
            0.05,
            0.0,
            0.25,
            -0.5,
            0.12,
            0.1,
            -0.08,
            -0.12,
            0.4,
            -0.3,
            -0.05,
            -0.12,
            0.1,
            0.05,
            0.2,
            -0.2,
            0.1,
            0.05,
            0.0,
            -0.08,
            0.35,
            -0.25,
            -0.08,
            0.05,
            0.08,
            0.0,
            -0.15,
            -0.05,
            0.12,
            0.05,
            -0.08,
            -0.1,
            0.05,
            0.25,
            -0.15,
            -0.05,
            -0.08,
            0.1,
            -0.2,
            -0.05,
            0.1,
            0.08,
            -0.05,
            -0.08,
            0.2,
            0.02
          ]
        }
      ],
      "xlim": [
        "2022-01-15T04:48",
        "2022-01-21T01:48"
      ],
      "ylim": [
        -0.5,
        0.4
      ],
      "yticks": [
        -0.5,
        -0.3,
        -0.1,
        0.1,
        0.3
      ],
      "xticks": [
        {
          "value": "2022-01-15T04:48",
          "label": "15/01/2022 04:48"
        },
        {
          "value": "2022-01-16T04:48",
          "label": "16/01/2022 04:48"
        },
        {
          "value": "2022-01-17T04:48",
          "label": "17/01/2022 04:48"
        },
        {
          "value": "2022-01-18T04:48",
          "label": "18/01/2022 04:48"
        },
        {
          "value": "2022-01-19T04:48",
          "label": "19/01/2022 04:48"
        },
        {
          "value": "2022-01-20T04:48",
          "label": "20/01/2022 04:48"
        }
      ],
      "bands": [
        {
          "axis": "x",
          "from": "2022-01-15T12:00",
          "to": "2022-01-15T18:00",
          "color": "#d9d9d9"
        },
        {
          "axis": "x",
          "from": "2022-01-16T06:00",
          "to": "2022-01-16T12:00",
          "color": "#d9d9d9"
        },
        {
          "axis": "x",
          "from": "2022-01-16T23:00",
          "to": "2022-01-17T05:00",
          "color": "#d9d9d9"
        },
        {
          "axis": "x",
          "from": "2022-01-17T19:00",
          "to": "2022-01-18T01:00",
          "color": "#d9d9d9"
        },
        {
          "axis": "x",
          "from": "2022-01-18T11:00",
          "to": "2022-01-18T17:00",
          "color": "#d9d9d9"
        },
        {
          "axis": "x",
          "from": "2022-01-19T08:00",
          "to": "2022-01-19T14:00",
          "color": "#d9d9d9"
        },
        {
          "axis": "x",
          "from": "2022-01-19T23:30",
          "to": "2022-01-20T05:30",
          "color": "#d9d9d9"
        },
        {
          "axis": "x",
          "from": "2022-01-20T18:00",
          "to": "2022-01-21T00:00",
          "color": "#d9d9d9"
        }
      ]
    }
  ]
}
